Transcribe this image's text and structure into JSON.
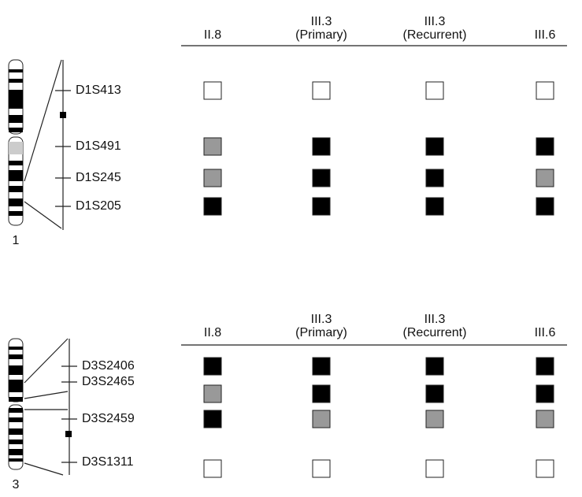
{
  "panels": [
    {
      "chromosome": "1",
      "columns": [
        [
          "II.8"
        ],
        [
          "III.3",
          "(Primary)"
        ],
        [
          "III.3",
          "(Recurrent)"
        ],
        [
          "III.6"
        ]
      ],
      "markers": [
        {
          "label": "D1S413",
          "colors": [
            "#ffffff",
            "#ffffff",
            "#ffffff",
            "#ffffff"
          ]
        },
        {
          "label": "D1S491",
          "colors": [
            "#999999",
            "#000000",
            "#000000",
            "#000000"
          ]
        },
        {
          "label": "D1S245",
          "colors": [
            "#999999",
            "#000000",
            "#000000",
            "#999999"
          ]
        },
        {
          "label": "D1S205",
          "colors": [
            "#000000",
            "#000000",
            "#000000",
            "#000000"
          ]
        }
      ]
    },
    {
      "chromosome": "3",
      "columns": [
        [
          "II.8"
        ],
        [
          "III.3",
          "(Primary)"
        ],
        [
          "III.3",
          "(Recurrent)"
        ],
        [
          "III.6"
        ]
      ],
      "markers": [
        {
          "label": "D3S2406",
          "colors": [
            "#000000",
            "#000000",
            "#000000",
            "#000000"
          ]
        },
        {
          "label": "D3S2465",
          "colors": [
            "#999999",
            "#000000",
            "#000000",
            "#000000"
          ]
        },
        {
          "label": "D3S2459",
          "colors": [
            "#000000",
            "#999999",
            "#999999",
            "#999999"
          ]
        },
        {
          "label": "D3S1311",
          "colors": [
            "#ffffff",
            "#ffffff",
            "#ffffff",
            "#ffffff"
          ]
        }
      ]
    }
  ]
}
